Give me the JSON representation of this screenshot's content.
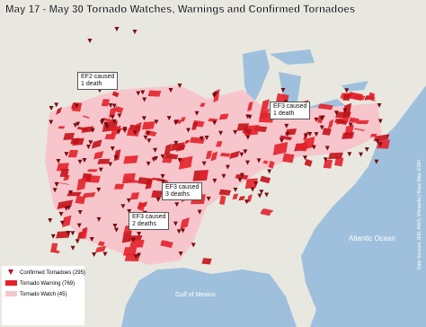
{
  "title": "May 17 - May 30 Tornado Watches, Warnings and Confirmed Tornadoes",
  "annotations": [
    "EF2 caused\n1 death",
    "EF3 caused\n1 death",
    "EF3 caused\n3 deaths",
    "EF3 caused\n2 deaths"
  ],
  "legend": [
    {
      "label": "Confirmed Tornadoes (295)"
    },
    {
      "label": "Tornado Warning (769)"
    },
    {
      "label": "Tornado Watch (45)"
    }
  ],
  "water_labels": {
    "atlantic": "Atlantic Ocean",
    "gulf": "Gulf of Mexico"
  },
  "credit": "Data Sources: IEM, NWS, Wikipedia | Base Map: ESRI"
}
